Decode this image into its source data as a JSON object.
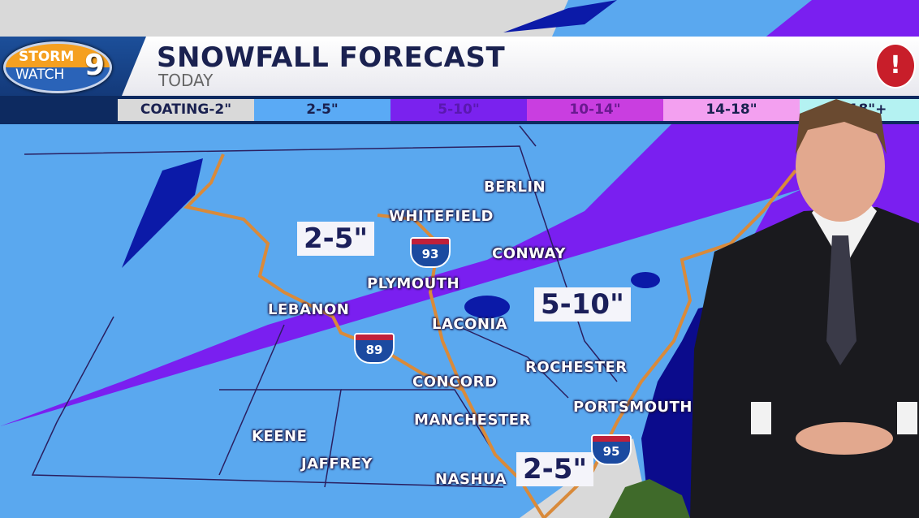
{
  "header": {
    "logo": {
      "line1": "STORM",
      "line2": "WATCH",
      "number": "9"
    },
    "title": "SNOWFALL FORECAST",
    "subtitle": "TODAY",
    "alert_icon": "warning-triangle-icon"
  },
  "legend": [
    {
      "label": "COATING-2\"",
      "color": "#d9d9d9"
    },
    {
      "label": "2-5\"",
      "color": "#5aaaf5"
    },
    {
      "label": "5-10\"",
      "color": "#7a22ee"
    },
    {
      "label": "10-14\"",
      "color": "#c93ee0"
    },
    {
      "label": "14-18\"",
      "color": "#f3a0f0"
    },
    {
      "label": "18\"+",
      "color": "#b4f2f2"
    }
  ],
  "map": {
    "cities": [
      "BERLIN",
      "WHITEFIELD",
      "CONWAY",
      "PLYMOUTH",
      "LEBANON",
      "LACONIA",
      "ROCHESTER",
      "CONCORD",
      "PORTSMOUTH",
      "MANCHESTER",
      "KEENE",
      "JAFFREY",
      "NASHUA"
    ],
    "amounts": [
      "2-5\"",
      "5-10\"",
      "2-5\""
    ],
    "highways": [
      "93",
      "89",
      "95"
    ],
    "colors": {
      "light_snow": "#5aa8ef",
      "moderate_snow": "#7a1ff0",
      "ocean": "#0b0b8c",
      "coating": "#d9d9d9",
      "roads": "#d98a3a"
    }
  }
}
